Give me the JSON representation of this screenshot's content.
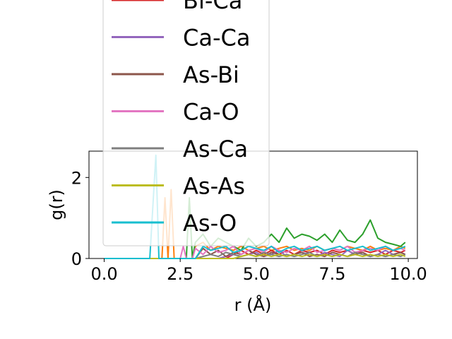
{
  "chart_data": {
    "type": "line",
    "xlabel": "r (Å)",
    "ylabel": "g(r)",
    "xlim": [
      -0.5,
      10.3
    ],
    "ylim": [
      0,
      2.65
    ],
    "xticks": [
      0.0,
      2.5,
      5.0,
      7.5,
      10.0
    ],
    "xtick_labels": [
      "0.0",
      "2.5",
      "5.0",
      "7.5",
      "10.0"
    ],
    "yticks": [
      0,
      2
    ],
    "ytick_labels": [
      "0",
      "2"
    ],
    "grid": false,
    "legend_placement": "upper-left, overflowing top",
    "x": [
      0,
      0.5,
      1.0,
      1.5,
      1.7,
      1.8,
      1.9,
      2.0,
      2.1,
      2.2,
      2.3,
      2.4,
      2.5,
      2.6,
      2.7,
      2.8,
      2.9,
      3.0,
      3.25,
      3.5,
      3.75,
      4.0,
      4.25,
      4.5,
      4.75,
      5.0,
      5.25,
      5.5,
      5.75,
      6.0,
      6.25,
      6.5,
      6.75,
      7.0,
      7.25,
      7.5,
      7.75,
      8.0,
      8.25,
      8.5,
      8.75,
      9.0,
      9.25,
      9.5,
      9.75,
      9.9
    ],
    "series": [
      {
        "name": "Bi-Ca",
        "color": "#d62728",
        "values": [
          0,
          0,
          0,
          0,
          0,
          0,
          0,
          0,
          0,
          0,
          0,
          0,
          0,
          0,
          0,
          0,
          0,
          0,
          0,
          0,
          0,
          0,
          0.1,
          0.2,
          0.1,
          0.2,
          0.1,
          0.2,
          0.1,
          0.2,
          0.1,
          0.2,
          0.15,
          0.2,
          0.1,
          0.2,
          0.15,
          0.2,
          0.1,
          0.2,
          0.15,
          0.2,
          0.1,
          0.2,
          0.15,
          0.2
        ]
      },
      {
        "name": "Ca-Ca",
        "color": "#9467bd",
        "values": [
          0,
          0,
          0,
          0,
          0,
          0,
          0,
          0,
          0,
          0,
          0,
          0,
          0,
          0,
          0,
          0,
          0,
          0,
          0,
          0,
          0,
          0.05,
          0.1,
          0.05,
          0.1,
          0.15,
          0.05,
          0.1,
          0.2,
          0.05,
          0.1,
          0.15,
          0.1,
          0.05,
          0.15,
          0.1,
          0.05,
          0.2,
          0.1,
          0.15,
          0.05,
          0.1,
          0.2,
          0.1,
          0.15,
          0.1
        ]
      },
      {
        "name": "As-Bi",
        "color": "#8c564b",
        "values": [
          0,
          0,
          0,
          0,
          0,
          0,
          0,
          0,
          0,
          0,
          0,
          0,
          0,
          0,
          0,
          0,
          0,
          0,
          0.25,
          0.1,
          0.2,
          0.05,
          0.15,
          0.1,
          0.2,
          0.1,
          0.05,
          0.15,
          0.1,
          0.05,
          0.1,
          0.15,
          0.05,
          0.1,
          0.05,
          0.15,
          0.1,
          0.05,
          0.1,
          0.15,
          0.05,
          0.1,
          0.05,
          0.1,
          0.15,
          0.1
        ]
      },
      {
        "name": "Ca-O",
        "color": "#e377c2",
        "values": [
          0,
          0,
          0,
          0,
          0,
          0,
          0,
          0,
          0,
          0,
          0,
          0,
          0,
          0.3,
          0,
          0,
          0,
          0.25,
          0.1,
          0.3,
          0.15,
          0.2,
          0.3,
          0.1,
          0.2,
          0.25,
          0.15,
          0.3,
          0.2,
          0.15,
          0.25,
          0.2,
          0.3,
          0.15,
          0.2,
          0.25,
          0.2,
          0.3,
          0.15,
          0.2,
          0.25,
          0.2,
          0.3,
          0.2,
          0.25,
          0.2
        ]
      },
      {
        "name": "As-Ca",
        "color": "#7f7f7f",
        "values": [
          0,
          0,
          0,
          0,
          0,
          0,
          0,
          0,
          0,
          0,
          0,
          0,
          0,
          0,
          0,
          0,
          0,
          0,
          0.05,
          0.1,
          0.05,
          0.15,
          0.1,
          0.05,
          0.1,
          0.05,
          0.15,
          0.1,
          0.05,
          0.1,
          0.05,
          0.1,
          0.15,
          0.05,
          0.1,
          0.05,
          0.1,
          0.05,
          0.15,
          0.1,
          0.05,
          0.1,
          0.05,
          0.1,
          0.05,
          0.1
        ]
      },
      {
        "name": "As-As",
        "color": "#bcbd22",
        "values": [
          0,
          0,
          0,
          0,
          0,
          0,
          0,
          0,
          0,
          0,
          0,
          0,
          0,
          0,
          0,
          0,
          0,
          0,
          0,
          0,
          0,
          0,
          0,
          0.05,
          0.1,
          0.05,
          0.1,
          0.05,
          0.1,
          0.05,
          0.1,
          0.05,
          0.1,
          0.05,
          0.1,
          0.05,
          0.1,
          0.05,
          0.1,
          0.05,
          0.1,
          0.05,
          0.1,
          0.05,
          0.1,
          0.05
        ]
      },
      {
        "name": "As-O",
        "color": "#17becf",
        "values": [
          0,
          0,
          0,
          0,
          2.55,
          0,
          0,
          0,
          0,
          0,
          0,
          0,
          0,
          0,
          0,
          0,
          0,
          0,
          0.3,
          0.2,
          0.25,
          0.3,
          0.15,
          0.2,
          0.3,
          0.25,
          0.2,
          0.3,
          0.15,
          0.25,
          0.3,
          0.2,
          0.25,
          0.3,
          0.2,
          0.25,
          0.3,
          0.2,
          0.25,
          0.3,
          0.2,
          0.25,
          0.3,
          0.2,
          0.25,
          0.3
        ]
      },
      {
        "name": "",
        "color": "#ff7f0e",
        "values": [
          0,
          0,
          0,
          0,
          0,
          0,
          0,
          1.5,
          0,
          1.7,
          0,
          0,
          0,
          0,
          0,
          0,
          0,
          0.3,
          0.4,
          0.2,
          0.3,
          0.25,
          0.2,
          0.3,
          0.2,
          0.25,
          0.3,
          0.2,
          0.25,
          0.3,
          0.2,
          0.25,
          0.2,
          0.3,
          0.2,
          0.25,
          0.2,
          0.3,
          0.25,
          0.2,
          0.3,
          0.2,
          0.25,
          0.2,
          0.3,
          0.25
        ]
      },
      {
        "name": "",
        "color": "#2ca02c",
        "values": [
          0,
          0,
          0,
          0,
          0,
          0,
          0,
          0,
          0,
          0,
          0,
          0,
          0,
          0,
          0,
          1.5,
          0,
          0.4,
          0.6,
          0.3,
          0.5,
          0.4,
          0.3,
          0.2,
          0.5,
          0.3,
          0.4,
          0.6,
          0.4,
          0.75,
          0.5,
          0.6,
          0.55,
          0.45,
          0.6,
          0.4,
          0.7,
          0.45,
          0.4,
          0.6,
          0.95,
          0.5,
          0.4,
          0.35,
          0.3,
          0.4
        ]
      }
    ],
    "legend_entries": [
      "Bi-Ca",
      "Ca-Ca",
      "As-Bi",
      "Ca-O",
      "As-Ca",
      "As-As",
      "As-O"
    ]
  }
}
